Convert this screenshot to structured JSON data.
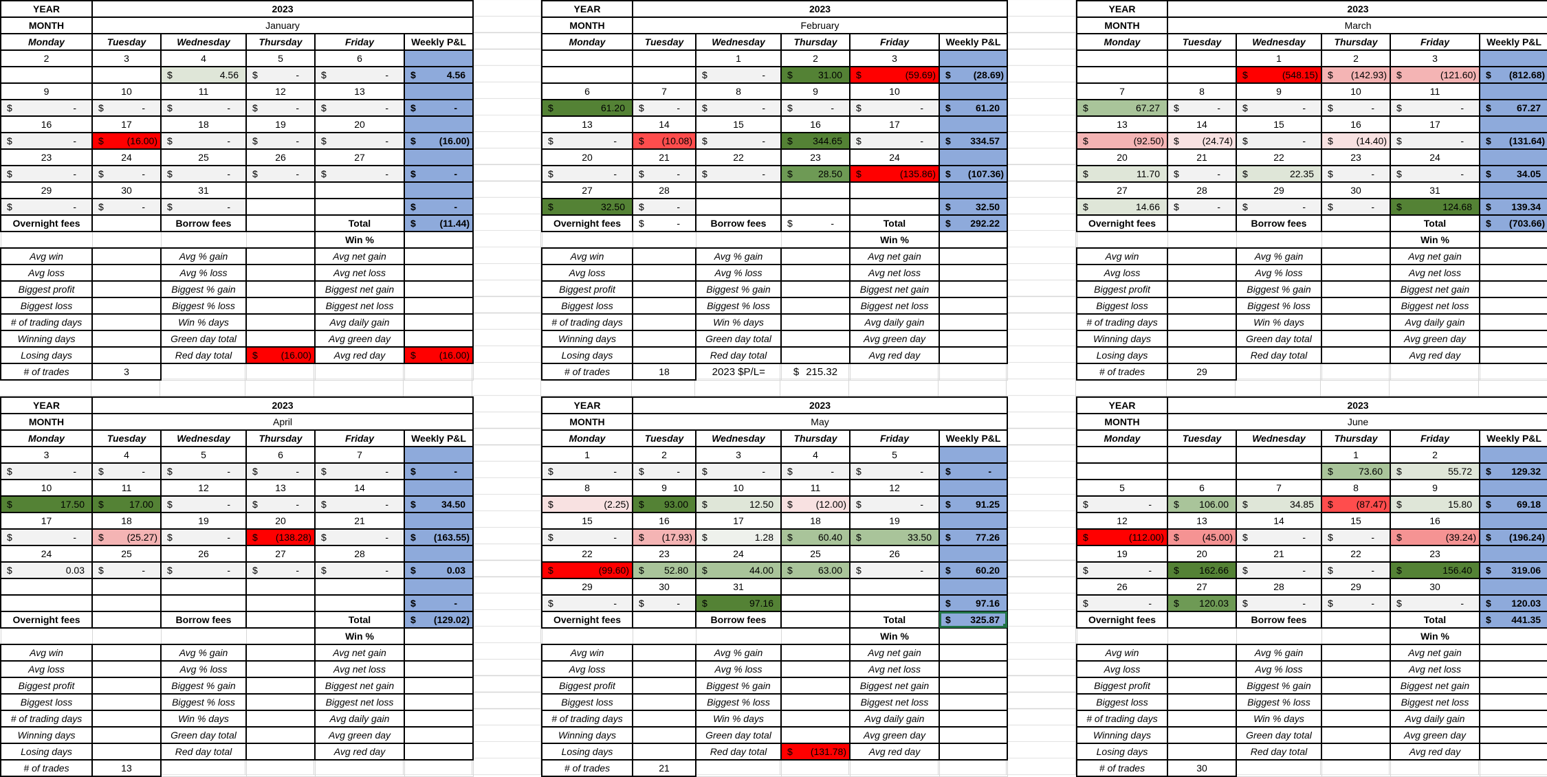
{
  "labels": {
    "year": "YEAR",
    "month": "MONTH",
    "weekdays": [
      "Monday",
      "Tuesday",
      "Wednesday",
      "Thursday",
      "Friday"
    ],
    "weekly": "Weekly P&L",
    "overnight": "Overnight fees",
    "borrow": "Borrow fees",
    "total": "Total",
    "win_pct": "Win %",
    "currency": "$",
    "trades": "# of trades",
    "stats": [
      [
        "Avg win",
        "Avg % gain",
        "Avg net gain"
      ],
      [
        "Avg loss",
        "Avg % loss",
        "Avg net loss"
      ],
      [
        "Biggest profit",
        "Biggest % gain",
        "Biggest net gain"
      ],
      [
        "Biggest loss",
        "Biggest % loss",
        "Biggest net loss"
      ],
      [
        "# of trading days",
        "Win % days",
        "Avg daily gain"
      ],
      [
        "Winning days",
        "Green day total",
        "Avg green day"
      ],
      [
        "Losing days",
        "Red day total",
        "Avg red day"
      ]
    ]
  },
  "palette": {
    "dg": "#548235",
    "mg": "#6e9a55",
    "lg": "#a9c49a",
    "vlg": "#dfe6d8",
    "xlg": "#eef1ec",
    "r": "#ff0000",
    "lr": "#ff4d4d",
    "p": "#f4b4b4",
    "p2": "#f59393",
    "vlp": "#f8e1e1",
    "gray": "#f2f2f2",
    "blue": "#8eaadb",
    "selected": "#217346"
  },
  "months": [
    {
      "year": "2023",
      "name": "January",
      "weeks": [
        {
          "dates": [
            "2",
            "3",
            "4",
            "5",
            "6"
          ],
          "values": [
            null,
            null,
            "4.56",
            "-",
            "-"
          ],
          "colors": [
            null,
            null,
            "vlg",
            null,
            null
          ],
          "weekly": "4.56"
        },
        {
          "dates": [
            "9",
            "10",
            "11",
            "12",
            "13"
          ],
          "values": [
            "-",
            "-",
            "-",
            "-",
            "-"
          ],
          "colors": [
            null,
            null,
            null,
            null,
            null
          ],
          "weekly": "-"
        },
        {
          "dates": [
            "16",
            "17",
            "18",
            "19",
            "20"
          ],
          "values": [
            "-",
            "(16.00)",
            "-",
            "-",
            "-"
          ],
          "colors": [
            null,
            "r",
            null,
            null,
            null
          ],
          "weekly": "(16.00)"
        },
        {
          "dates": [
            "23",
            "24",
            "25",
            "26",
            "27"
          ],
          "values": [
            "-",
            "-",
            "-",
            "-",
            "-"
          ],
          "colors": [
            null,
            null,
            null,
            null,
            null
          ],
          "weekly": "-"
        },
        {
          "dates": [
            "29",
            "30",
            "31",
            "",
            ""
          ],
          "values": [
            "-",
            "-",
            "-",
            null,
            null
          ],
          "colors": [
            null,
            null,
            null,
            null,
            null
          ],
          "weekly": "-"
        }
      ],
      "overnight": null,
      "borrow": null,
      "total": "(11.44)",
      "stats": [
        [
          null,
          null,
          null
        ],
        [
          null,
          null,
          null
        ],
        [
          null,
          null,
          null
        ],
        [
          null,
          null,
          null
        ],
        [
          null,
          null,
          null
        ],
        [
          null,
          null,
          null
        ],
        [
          null,
          {
            "value": "(16.00)",
            "color": "r"
          },
          {
            "value": "(16.00)",
            "color": "r"
          }
        ]
      ],
      "trades": "3"
    },
    {
      "year": "2023",
      "name": "February",
      "weeks": [
        {
          "dates": [
            "",
            "",
            "1",
            "2",
            "3"
          ],
          "values": [
            null,
            null,
            "-",
            "31.00",
            "(59.69)"
          ],
          "colors": [
            null,
            null,
            null,
            "dg",
            "r"
          ],
          "weekly": "(28.69)"
        },
        {
          "dates": [
            "6",
            "7",
            "8",
            "9",
            "10"
          ],
          "values": [
            "61.20",
            "-",
            "-",
            "-",
            "-"
          ],
          "colors": [
            "dg",
            null,
            null,
            null,
            null
          ],
          "weekly": "61.20"
        },
        {
          "dates": [
            "13",
            "14",
            "15",
            "16",
            "17"
          ],
          "values": [
            "-",
            "(10.08)",
            "-",
            "344.65",
            "-"
          ],
          "colors": [
            null,
            "lr",
            null,
            "dg",
            null
          ],
          "weekly": "334.57"
        },
        {
          "dates": [
            "20",
            "21",
            "22",
            "23",
            "24"
          ],
          "values": [
            "-",
            "-",
            "-",
            "28.50",
            "(135.86)"
          ],
          "colors": [
            null,
            null,
            null,
            "mg",
            "r"
          ],
          "weekly": "(107.36)"
        },
        {
          "dates": [
            "27",
            "28",
            "",
            "",
            ""
          ],
          "values": [
            "32.50",
            "-",
            null,
            null,
            null
          ],
          "colors": [
            "dg",
            null,
            null,
            null,
            null
          ],
          "weekly": "32.50"
        }
      ],
      "overnight": "-",
      "borrow": "-",
      "total": "292.22",
      "trades": "18",
      "year_pl": {
        "label": "2023 $P/L=",
        "value": "215.32"
      }
    },
    {
      "year": "2023",
      "name": "March",
      "weeks": [
        {
          "dates": [
            "",
            "",
            "1",
            "2",
            "3"
          ],
          "values": [
            null,
            null,
            "(548.15)",
            "(142.93)",
            "(121.60)"
          ],
          "colors": [
            null,
            null,
            "r",
            "p",
            "p"
          ],
          "weekly": "(812.68)"
        },
        {
          "dates": [
            "7",
            "8",
            "9",
            "10",
            "11"
          ],
          "values": [
            "67.27",
            "-",
            "-",
            "-",
            "-"
          ],
          "colors": [
            "lg",
            null,
            null,
            null,
            null
          ],
          "weekly": "67.27"
        },
        {
          "dates": [
            "13",
            "14",
            "15",
            "16",
            "17"
          ],
          "values": [
            "(92.50)",
            "(24.74)",
            "-",
            "(14.40)",
            "-"
          ],
          "colors": [
            "p",
            "vlp",
            null,
            "vlp",
            null
          ],
          "weekly": "(131.64)"
        },
        {
          "dates": [
            "20",
            "21",
            "22",
            "23",
            "24"
          ],
          "values": [
            "11.70",
            "-",
            "22.35",
            "-",
            "-"
          ],
          "colors": [
            "vlg",
            null,
            "vlg",
            null,
            null
          ],
          "weekly": "34.05"
        },
        {
          "dates": [
            "27",
            "28",
            "29",
            "30",
            "31"
          ],
          "values": [
            "14.66",
            "-",
            "-",
            "-",
            "124.68"
          ],
          "colors": [
            "vlg",
            null,
            null,
            null,
            "dg"
          ],
          "weekly": "139.34"
        }
      ],
      "overnight": null,
      "borrow": null,
      "total": "(703.66)",
      "trades": "29"
    },
    {
      "year": "2023",
      "name": "April",
      "weeks": [
        {
          "dates": [
            "3",
            "4",
            "5",
            "6",
            "7"
          ],
          "values": [
            "-",
            "-",
            "-",
            "-",
            "-"
          ],
          "colors": [
            null,
            null,
            null,
            null,
            null
          ],
          "weekly": "-"
        },
        {
          "dates": [
            "10",
            "11",
            "12",
            "13",
            "14"
          ],
          "values": [
            "17.50",
            "17.00",
            "-",
            "-",
            "-"
          ],
          "colors": [
            "dg",
            "dg",
            null,
            null,
            null
          ],
          "weekly": "34.50"
        },
        {
          "dates": [
            "17",
            "18",
            "19",
            "20",
            "21"
          ],
          "values": [
            "-",
            "(25.27)",
            "-",
            "(138.28)",
            "-"
          ],
          "colors": [
            null,
            "p",
            null,
            "r",
            null
          ],
          "weekly": "(163.55)"
        },
        {
          "dates": [
            "24",
            "25",
            "26",
            "27",
            "28"
          ],
          "values": [
            "0.03",
            "-",
            "-",
            "-",
            "-"
          ],
          "colors": [
            null,
            null,
            null,
            null,
            null
          ],
          "weekly": "0.03"
        },
        {
          "dates": [
            "",
            "",
            "",
            "",
            ""
          ],
          "values": [
            null,
            null,
            null,
            null,
            null
          ],
          "colors": [
            null,
            null,
            null,
            null,
            null
          ],
          "weekly": "-"
        }
      ],
      "overnight": null,
      "borrow": null,
      "total": "(129.02)",
      "trades": "13"
    },
    {
      "year": "2023",
      "name": "May",
      "weeks": [
        {
          "dates": [
            "1",
            "2",
            "3",
            "4",
            "5"
          ],
          "values": [
            "-",
            "-",
            "-",
            "-",
            "-"
          ],
          "colors": [
            null,
            null,
            null,
            null,
            null
          ],
          "weekly": "-"
        },
        {
          "dates": [
            "8",
            "9",
            "10",
            "11",
            "12"
          ],
          "values": [
            "(2.25)",
            "93.00",
            "12.50",
            "(12.00)",
            "-"
          ],
          "colors": [
            "vlp",
            "dg",
            "vlg",
            "vlp",
            null
          ],
          "weekly": "91.25"
        },
        {
          "dates": [
            "15",
            "16",
            "17",
            "18",
            "19"
          ],
          "values": [
            "-",
            "(17.93)",
            "1.28",
            "60.40",
            "33.50"
          ],
          "colors": [
            null,
            "p",
            "xlg",
            "lg",
            "lg"
          ],
          "weekly": "77.26"
        },
        {
          "dates": [
            "22",
            "23",
            "24",
            "25",
            "26"
          ],
          "values": [
            "(99.60)",
            "52.80",
            "44.00",
            "63.00",
            "-"
          ],
          "colors": [
            "r",
            "lg",
            "lg",
            "lg",
            null
          ],
          "weekly": "60.20"
        },
        {
          "dates": [
            "29",
            "30",
            "31",
            "",
            ""
          ],
          "values": [
            "-",
            "-",
            "97.16",
            null,
            null
          ],
          "colors": [
            null,
            null,
            "dg",
            null,
            null
          ],
          "weekly": "97.16"
        }
      ],
      "overnight": null,
      "borrow": null,
      "total": "325.87",
      "total_selected": true,
      "stats": [
        [
          null,
          null,
          null
        ],
        [
          null,
          null,
          null
        ],
        [
          null,
          null,
          null
        ],
        [
          null,
          null,
          null
        ],
        [
          null,
          null,
          null
        ],
        [
          null,
          null,
          null
        ],
        [
          null,
          {
            "value": "(131.78)",
            "color": "r"
          },
          null
        ]
      ],
      "trades": "21"
    },
    {
      "year": "2023",
      "name": "June",
      "weeks": [
        {
          "dates": [
            "",
            "",
            "",
            "1",
            "2"
          ],
          "values": [
            null,
            null,
            null,
            "73.60",
            "55.72"
          ],
          "colors": [
            null,
            null,
            null,
            "lg",
            "vlg"
          ],
          "weekly": "129.32"
        },
        {
          "dates": [
            "5",
            "6",
            "7",
            "8",
            "9"
          ],
          "values": [
            "-",
            "106.00",
            "34.85",
            "(87.47)",
            "15.80"
          ],
          "colors": [
            null,
            "lg",
            "vlg",
            "lr",
            "vlg"
          ],
          "weekly": "69.18"
        },
        {
          "dates": [
            "12",
            "13",
            "14",
            "15",
            "16"
          ],
          "values": [
            "(112.00)",
            "(45.00)",
            "-",
            "-",
            "(39.24)"
          ],
          "colors": [
            "r",
            "p2",
            null,
            null,
            "p2"
          ],
          "weekly": "(196.24)"
        },
        {
          "dates": [
            "19",
            "20",
            "21",
            "22",
            "23"
          ],
          "values": [
            "-",
            "162.66",
            "-",
            "-",
            "156.40"
          ],
          "colors": [
            null,
            "dg",
            null,
            null,
            "dg"
          ],
          "weekly": "319.06"
        },
        {
          "dates": [
            "26",
            "27",
            "28",
            "29",
            "30"
          ],
          "values": [
            "-",
            "120.03",
            "-",
            "-",
            "-"
          ],
          "colors": [
            null,
            "mg",
            null,
            null,
            null
          ],
          "weekly": "120.03"
        }
      ],
      "overnight": null,
      "borrow": null,
      "total": "441.35",
      "trades": "30"
    }
  ]
}
